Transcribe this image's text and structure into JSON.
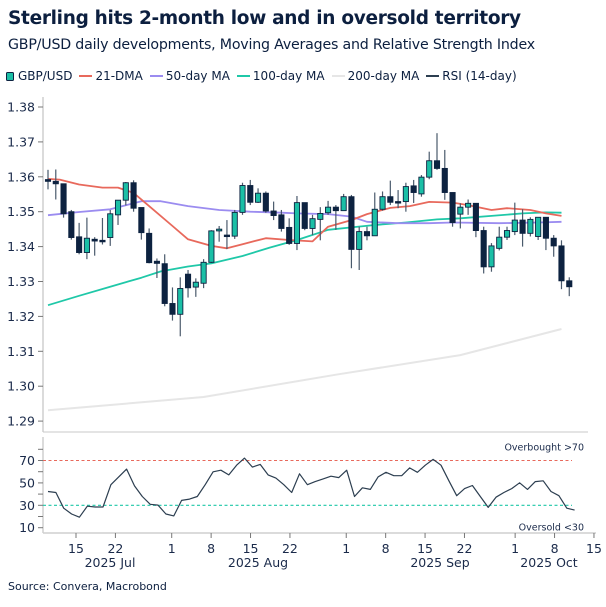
{
  "title": "Sterling hits 2-month low and in oversold territory",
  "subtitle": "GBP/USD daily developments, Moving Averages and Relative Strength Index",
  "source": "Source: Convera, Macrobond",
  "legend": [
    {
      "name": "GBP/USD",
      "color": "#1bbfa6",
      "kind": "candle"
    },
    {
      "name": "21-DMA",
      "color": "#e8695c"
    },
    {
      "name": "50-day MA",
      "color": "#9b8cf0"
    },
    {
      "name": "100-day MA",
      "color": "#1fc8a8"
    },
    {
      "name": "200-day MA",
      "color": "#e6e6e6"
    },
    {
      "name": "RSI (14-day)",
      "color": "#2c3e50"
    }
  ],
  "colors": {
    "up": "#1bbfa6",
    "down": "#0d2240",
    "wick": "#4a5a6c"
  },
  "chart_data": [
    {
      "type": "candlestick",
      "ylim": [
        1.29,
        1.38
      ],
      "yticks": [
        "1.29",
        "1.30",
        "1.31",
        "1.32",
        "1.33",
        "1.34",
        "1.35",
        "1.36",
        "1.37",
        "1.38"
      ],
      "ohlc_fields": [
        "open",
        "high",
        "low",
        "close"
      ],
      "candles": [
        [
          1.3592,
          1.362,
          1.3564,
          1.3587
        ],
        [
          1.3587,
          1.3621,
          1.3535,
          1.358
        ],
        [
          1.358,
          1.358,
          1.3483,
          1.3494
        ],
        [
          1.35,
          1.3505,
          1.342,
          1.3426
        ],
        [
          1.3428,
          1.3468,
          1.3378,
          1.3383
        ],
        [
          1.3383,
          1.3483,
          1.3364,
          1.3424
        ],
        [
          1.3421,
          1.3427,
          1.3374,
          1.3416
        ],
        [
          1.3418,
          1.3482,
          1.3406,
          1.3416
        ],
        [
          1.3426,
          1.3505,
          1.3402,
          1.3494
        ],
        [
          1.3491,
          1.3533,
          1.3462,
          1.3533
        ],
        [
          1.3533,
          1.3585,
          1.3518,
          1.3583
        ],
        [
          1.3583,
          1.359,
          1.35,
          1.351
        ],
        [
          1.3512,
          1.3512,
          1.342,
          1.344
        ],
        [
          1.3438,
          1.3452,
          1.3352,
          1.3354
        ],
        [
          1.3358,
          1.3366,
          1.331,
          1.3352
        ],
        [
          1.3351,
          1.3378,
          1.3229,
          1.3237
        ],
        [
          1.3237,
          1.3283,
          1.3188,
          1.3206
        ],
        [
          1.3206,
          1.3312,
          1.3143,
          1.328
        ],
        [
          1.3321,
          1.3333,
          1.3254,
          1.3282
        ],
        [
          1.3284,
          1.3309,
          1.3256,
          1.3298
        ],
        [
          1.3295,
          1.3364,
          1.3281,
          1.3355
        ],
        [
          1.3355,
          1.3447,
          1.3353,
          1.3445
        ],
        [
          1.3445,
          1.3459,
          1.3414,
          1.345
        ],
        [
          1.3433,
          1.3476,
          1.3393,
          1.343
        ],
        [
          1.343,
          1.3505,
          1.3422,
          1.3498
        ],
        [
          1.3498,
          1.3583,
          1.3491,
          1.3575
        ],
        [
          1.3575,
          1.3591,
          1.3519,
          1.3527
        ],
        [
          1.3527,
          1.3567,
          1.3525,
          1.3553
        ],
        [
          1.3553,
          1.3558,
          1.3497,
          1.3502
        ],
        [
          1.3502,
          1.3529,
          1.3476,
          1.3489
        ],
        [
          1.3491,
          1.3505,
          1.3443,
          1.3452
        ],
        [
          1.3455,
          1.3481,
          1.3405,
          1.3409
        ],
        [
          1.3409,
          1.3545,
          1.339,
          1.3526
        ],
        [
          1.3526,
          1.3526,
          1.3447,
          1.3452
        ],
        [
          1.3452,
          1.3491,
          1.3433,
          1.348
        ],
        [
          1.3478,
          1.3513,
          1.3418,
          1.3495
        ],
        [
          1.3497,
          1.3531,
          1.3491,
          1.3513
        ],
        [
          1.3513,
          1.3519,
          1.3448,
          1.3503
        ],
        [
          1.3503,
          1.3551,
          1.3503,
          1.3543
        ],
        [
          1.3543,
          1.3548,
          1.3338,
          1.3392
        ],
        [
          1.3392,
          1.3457,
          1.3333,
          1.3443
        ],
        [
          1.3443,
          1.3457,
          1.3418,
          1.3431
        ],
        [
          1.3431,
          1.3555,
          1.3431,
          1.3507
        ],
        [
          1.3507,
          1.3558,
          1.3503,
          1.3543
        ],
        [
          1.3543,
          1.3589,
          1.3519,
          1.3527
        ],
        [
          1.3529,
          1.3562,
          1.351,
          1.3528
        ],
        [
          1.3529,
          1.3583,
          1.35,
          1.3572
        ],
        [
          1.3574,
          1.3591,
          1.3525,
          1.3555
        ],
        [
          1.3551,
          1.3605,
          1.3543,
          1.3599
        ],
        [
          1.3599,
          1.3672,
          1.3593,
          1.3646
        ],
        [
          1.3646,
          1.3725,
          1.362,
          1.3624
        ],
        [
          1.3624,
          1.3677,
          1.3534,
          1.3555
        ],
        [
          1.3555,
          1.3555,
          1.3457,
          1.3469
        ],
        [
          1.3493,
          1.3524,
          1.3452,
          1.3513
        ],
        [
          1.3513,
          1.3535,
          1.3491,
          1.3524
        ],
        [
          1.3524,
          1.3524,
          1.3427,
          1.3446
        ],
        [
          1.3446,
          1.3457,
          1.3323,
          1.3342
        ],
        [
          1.3342,
          1.341,
          1.3328,
          1.3402
        ],
        [
          1.3395,
          1.3457,
          1.3389,
          1.3427
        ],
        [
          1.3427,
          1.3457,
          1.3419,
          1.3446
        ],
        [
          1.3443,
          1.3526,
          1.3433,
          1.3476
        ],
        [
          1.3476,
          1.3507,
          1.34,
          1.3438
        ],
        [
          1.3438,
          1.3484,
          1.3429,
          1.3478
        ],
        [
          1.3429,
          1.3484,
          1.3419,
          1.3484
        ],
        [
          1.3484,
          1.3484,
          1.339,
          1.3424
        ],
        [
          1.3424,
          1.3433,
          1.3371,
          1.3402
        ],
        [
          1.3402,
          1.3418,
          1.3278,
          1.3302
        ],
        [
          1.3302,
          1.3312,
          1.3258,
          1.3285
        ]
      ],
      "series": [
        {
          "name": "21-DMA",
          "color": "#e8695c",
          "points": [
            [
              0,
              1.3594
            ],
            [
              1.5,
              1.3592
            ],
            [
              4,
              1.3578
            ],
            [
              7,
              1.3569
            ],
            [
              9,
              1.3569
            ],
            [
              11,
              1.3554
            ],
            [
              13,
              1.3516
            ],
            [
              16,
              1.3459
            ],
            [
              18,
              1.3421
            ],
            [
              21,
              1.3402
            ],
            [
              23,
              1.3395
            ],
            [
              25,
              1.3407
            ],
            [
              28,
              1.3424
            ],
            [
              31,
              1.3419
            ],
            [
              34,
              1.3415
            ],
            [
              36,
              1.3457
            ],
            [
              39,
              1.3476
            ],
            [
              41,
              1.3493
            ],
            [
              44,
              1.3511
            ],
            [
              46.5,
              1.3516
            ],
            [
              49,
              1.3528
            ],
            [
              52,
              1.3526
            ],
            [
              54,
              1.3519
            ],
            [
              57,
              1.3505
            ],
            [
              59,
              1.351
            ],
            [
              62,
              1.3505
            ],
            [
              64,
              1.3495
            ],
            [
              66,
              1.3488
            ]
          ]
        },
        {
          "name": "50-day MA",
          "color": "#9b8cf0",
          "points": [
            [
              0,
              1.349
            ],
            [
              4,
              1.3499
            ],
            [
              8,
              1.3507
            ],
            [
              12,
              1.353
            ],
            [
              14.5,
              1.353
            ],
            [
              18,
              1.3516
            ],
            [
              22,
              1.3505
            ],
            [
              26,
              1.35
            ],
            [
              30,
              1.3497
            ],
            [
              32,
              1.3495
            ],
            [
              36,
              1.3493
            ],
            [
              39,
              1.3486
            ],
            [
              41,
              1.3471
            ],
            [
              45,
              1.3467
            ],
            [
              49,
              1.3467
            ],
            [
              52,
              1.3469
            ],
            [
              58,
              1.3467
            ],
            [
              63,
              1.3469
            ],
            [
              66,
              1.3471
            ]
          ]
        },
        {
          "name": "100-day MA",
          "color": "#1fc8a8",
          "points": [
            [
              0,
              1.3232
            ],
            [
              4,
              1.3259
            ],
            [
              8,
              1.3285
            ],
            [
              12,
              1.3311
            ],
            [
              14.5,
              1.3329
            ],
            [
              18,
              1.3343
            ],
            [
              21,
              1.3352
            ],
            [
              25,
              1.3373
            ],
            [
              28.5,
              1.3397
            ],
            [
              32,
              1.3419
            ],
            [
              36,
              1.3448
            ],
            [
              39,
              1.3455
            ],
            [
              42,
              1.3462
            ],
            [
              46,
              1.3469
            ],
            [
              50,
              1.3478
            ],
            [
              53,
              1.3481
            ],
            [
              57,
              1.3488
            ],
            [
              61,
              1.3495
            ],
            [
              64,
              1.3498
            ],
            [
              66,
              1.3497
            ]
          ]
        },
        {
          "name": "200-day MA",
          "color": "#e6e6e6",
          "points": [
            [
              0,
              1.2931
            ],
            [
              20,
              1.2969
            ],
            [
              37,
              1.3033
            ],
            [
              53,
              1.3089
            ],
            [
              66,
              1.3164
            ]
          ]
        }
      ]
    },
    {
      "type": "line",
      "name": "RSI (14-day)",
      "ylim": [
        0,
        85
      ],
      "yticks": [
        "10",
        "30",
        "50",
        "70"
      ],
      "values": [
        42.3,
        41.4,
        27.4,
        22.2,
        19.4,
        29.2,
        28.5,
        28.5,
        48.4,
        55.4,
        62.3,
        47.3,
        37.9,
        30.9,
        30.2,
        22.2,
        20.5,
        34.4,
        35.5,
        37.9,
        48.4,
        59.9,
        61.3,
        57.1,
        65.8,
        72.1,
        64.1,
        66.5,
        57.1,
        54.3,
        48.4,
        41.4,
        58.1,
        48.4,
        51.2,
        53.6,
        56.0,
        54.7,
        61.3,
        37.9,
        45.6,
        44.2,
        55.4,
        59.5,
        56.4,
        56.4,
        63.4,
        59.5,
        65.8,
        71.0,
        65.8,
        51.9,
        38.6,
        44.9,
        47.7,
        37.9,
        28.1,
        37.2,
        41.4,
        44.9,
        50.1,
        44.2,
        51.2,
        51.9,
        42.3,
        38.6,
        27.4,
        25.7
      ],
      "reference_lines": [
        {
          "value": 70,
          "label": "Overbought >70",
          "color": "#e8695c",
          "style": "dashed"
        },
        {
          "value": 30,
          "label": "Oversold <30",
          "color": "#1fc8a8",
          "style": "dashed"
        }
      ]
    }
  ],
  "xaxis": {
    "ticks": [
      {
        "date": "2025-07-15",
        "label": "15"
      },
      {
        "date": "2025-07-22",
        "label": "22"
      },
      {
        "date": "2025-08-01",
        "label": "1"
      },
      {
        "date": "2025-08-08",
        "label": "8"
      },
      {
        "date": "2025-08-15",
        "label": "15"
      },
      {
        "date": "2025-08-22",
        "label": "22"
      },
      {
        "date": "2025-09-01",
        "label": "1"
      },
      {
        "date": "2025-09-08",
        "label": "8"
      },
      {
        "date": "2025-09-15",
        "label": "15"
      },
      {
        "date": "2025-09-22",
        "label": "22"
      },
      {
        "date": "2025-10-01",
        "label": "1"
      },
      {
        "date": "2025-10-08",
        "label": "8"
      },
      {
        "date": "2025-10-15",
        "label": "15"
      }
    ],
    "months": [
      "2025 Jul",
      "2025 Aug",
      "2025 Sep",
      "2025 Oct"
    ]
  }
}
